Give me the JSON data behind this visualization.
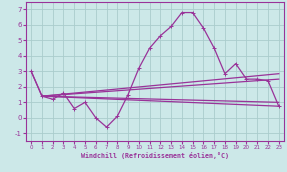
{
  "background_color": "#cce8e8",
  "grid_color": "#aacccc",
  "line_color": "#993399",
  "xlabel": "Windchill (Refroidissement éolien,°C)",
  "xlim": [
    -0.5,
    23.5
  ],
  "ylim": [
    -1.5,
    7.5
  ],
  "yticks": [
    -1,
    0,
    1,
    2,
    3,
    4,
    5,
    6,
    7
  ],
  "xticks": [
    0,
    1,
    2,
    3,
    4,
    5,
    6,
    7,
    8,
    9,
    10,
    11,
    12,
    13,
    14,
    15,
    16,
    17,
    18,
    19,
    20,
    21,
    22,
    23
  ],
  "line_main_x": [
    0,
    1,
    2,
    3,
    4,
    5,
    6,
    7,
    8,
    9,
    10,
    11,
    12,
    13,
    14,
    15,
    16,
    17,
    18,
    19,
    20,
    21,
    22,
    23
  ],
  "line_main_y": [
    3.0,
    1.4,
    1.2,
    1.6,
    0.6,
    1.0,
    0.0,
    -0.6,
    0.1,
    1.5,
    3.2,
    4.5,
    5.3,
    5.9,
    6.8,
    6.8,
    5.8,
    4.5,
    2.85,
    3.5,
    2.5,
    2.5,
    2.4,
    0.75
  ],
  "line2_x": [
    0,
    1,
    23
  ],
  "line2_y": [
    3.0,
    1.4,
    0.75
  ],
  "line3_x": [
    1,
    23
  ],
  "line3_y": [
    1.4,
    1.0
  ],
  "line4_x": [
    1,
    23
  ],
  "line4_y": [
    1.4,
    2.5
  ],
  "line5_x": [
    1,
    23
  ],
  "line5_y": [
    1.4,
    2.85
  ]
}
